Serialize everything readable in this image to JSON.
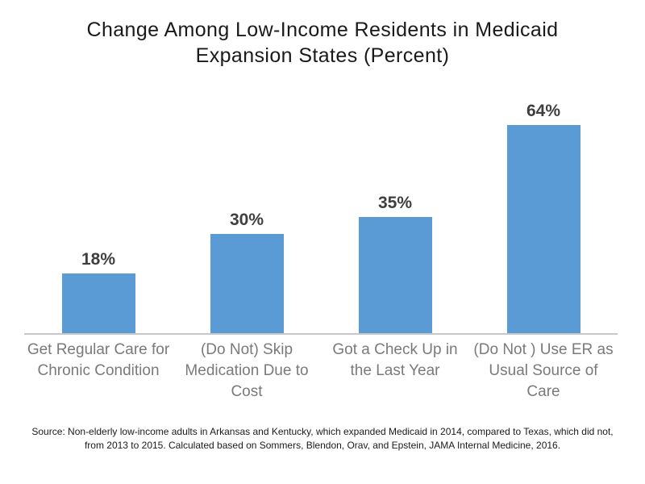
{
  "chart_data": {
    "type": "bar",
    "title": "Change Among Low-Income Residents in Medicaid\nExpansion States (Percent)",
    "categories": [
      "Get Regular Care for\nChronic Condition",
      "(Do Not) Skip\nMedication Due to\nCost",
      "Got a Check Up in\nthe Last Year",
      "(Do Not ) Use ER as\nUsual Source of\nCare"
    ],
    "values": [
      18,
      30,
      35,
      64
    ],
    "data_labels": [
      "18%",
      "30%",
      "35%",
      "64%"
    ],
    "value_suffix": "%",
    "xlabel": "",
    "ylabel": "",
    "ylim": [
      0,
      70
    ],
    "grid": false,
    "legend": false,
    "legend_position": "none",
    "bar_color": "#5B9BD5",
    "axis_line_color": "#C8C8C8",
    "value_label_color": "#3F3F3F",
    "category_label_color": "#7A7A7A",
    "title_color": "#1A1A1A",
    "source_note": "Source: Non-elderly low-income adults in Arkansas and Kentucky, which expanded Medicaid in 2014, compared to Texas, which did not,\nfrom 2013 to 2015. Calculated based on Sommers, Blendon, Orav, and Epstein, JAMA Internal Medicine, 2016."
  }
}
